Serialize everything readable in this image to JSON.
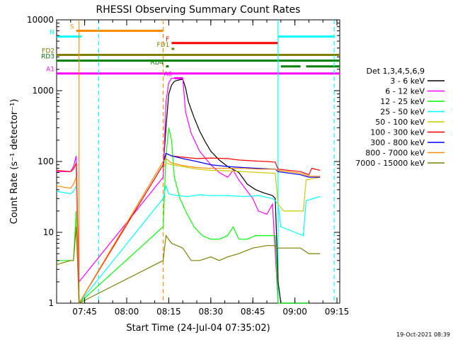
{
  "chart_data": {
    "type": "line",
    "title": "RHESSI Observing Summary Count Rates",
    "xlabel": "Start Time (24-Jul-04 07:35:02)",
    "ylabel": "Count Rate (s⁻¹ detector⁻¹)",
    "yscale": "log",
    "ylim": [
      1,
      10000
    ],
    "xlim": [
      "07:35",
      "09:16"
    ],
    "x_ticks": [
      "07:45",
      "08:00",
      "08:15",
      "08:30",
      "08:45",
      "09:00",
      "09:15"
    ],
    "y_ticks": [
      "1",
      "10",
      "100",
      "1000",
      "10000"
    ],
    "timestamp": "19-Oct-2021 08:39",
    "legend_title": "Det 1,3,4,5,6,9",
    "legend_position": "right",
    "series": [
      {
        "name": "3 - 6 keV",
        "color": "#000000",
        "points": [
          [
            "08:13",
            80
          ],
          [
            "08:14",
            300
          ],
          [
            "08:15",
            900
          ],
          [
            "08:16",
            1200
          ],
          [
            "08:17",
            1350
          ],
          [
            "08:18",
            1400
          ],
          [
            "08:20",
            1450
          ],
          [
            "08:21",
            1100
          ],
          [
            "08:22",
            700
          ],
          [
            "08:24",
            420
          ],
          [
            "08:26",
            270
          ],
          [
            "08:28",
            190
          ],
          [
            "08:30",
            140
          ],
          [
            "08:33",
            105
          ],
          [
            "08:36",
            85
          ],
          [
            "08:40",
            70
          ],
          [
            "08:43",
            48
          ],
          [
            "08:46",
            40
          ],
          [
            "08:49",
            36
          ],
          [
            "08:52",
            33
          ],
          [
            "08:53",
            30
          ],
          [
            "08:54",
            2
          ],
          [
            "08:55",
            1
          ],
          [
            "09:05",
            1
          ]
        ]
      },
      {
        "name": "6 - 12 keV",
        "color": "#ff00ff",
        "points": [
          [
            "07:35",
            72
          ],
          [
            "07:40",
            72
          ],
          [
            "07:41",
            85
          ],
          [
            "07:42",
            120
          ],
          [
            "07:43",
            2
          ],
          [
            "08:13",
            60
          ],
          [
            "08:14",
            700
          ],
          [
            "08:15",
            1300
          ],
          [
            "08:16",
            1500
          ],
          [
            "08:20",
            1500
          ],
          [
            "08:21",
            500
          ],
          [
            "08:23",
            250
          ],
          [
            "08:26",
            140
          ],
          [
            "08:30",
            90
          ],
          [
            "08:33",
            70
          ],
          [
            "08:36",
            60
          ],
          [
            "08:38",
            75
          ],
          [
            "08:40",
            55
          ],
          [
            "08:43",
            38
          ],
          [
            "08:45",
            30
          ],
          [
            "08:47",
            20
          ],
          [
            "08:50",
            18
          ],
          [
            "08:52",
            25
          ],
          [
            "08:54",
            1
          ],
          [
            "09:05",
            1
          ]
        ]
      },
      {
        "name": "12 - 25 keV",
        "color": "#00ff00",
        "points": [
          [
            "07:35",
            4
          ],
          [
            "07:41",
            4
          ],
          [
            "07:42",
            20
          ],
          [
            "07:43",
            1
          ],
          [
            "08:13",
            12
          ],
          [
            "08:14",
            120
          ],
          [
            "08:15",
            300
          ],
          [
            "08:16",
            200
          ],
          [
            "08:17",
            60
          ],
          [
            "08:19",
            30
          ],
          [
            "08:21",
            20
          ],
          [
            "08:24",
            12
          ],
          [
            "08:27",
            9
          ],
          [
            "08:30",
            8
          ],
          [
            "08:33",
            8
          ],
          [
            "08:36",
            9
          ],
          [
            "08:38",
            12
          ],
          [
            "08:40",
            8
          ],
          [
            "08:43",
            8
          ],
          [
            "08:46",
            9
          ],
          [
            "08:50",
            9
          ],
          [
            "08:53",
            9
          ],
          [
            "08:54",
            1
          ],
          [
            "09:05",
            1
          ]
        ]
      },
      {
        "name": "25 - 50 keV",
        "color": "#00ffff",
        "points": [
          [
            "07:35",
            38
          ],
          [
            "07:40",
            35
          ],
          [
            "07:41",
            38
          ],
          [
            "07:42",
            45
          ],
          [
            "07:43",
            1
          ],
          [
            "08:13",
            30
          ],
          [
            "08:14",
            45
          ],
          [
            "08:15",
            35
          ],
          [
            "08:18",
            33
          ],
          [
            "08:22",
            32
          ],
          [
            "08:26",
            34
          ],
          [
            "08:30",
            33
          ],
          [
            "08:36",
            33
          ],
          [
            "08:42",
            32
          ],
          [
            "08:47",
            33
          ],
          [
            "08:52",
            30
          ],
          [
            "08:53",
            28
          ],
          [
            "08:54",
            25
          ],
          [
            "08:55",
            12
          ],
          [
            "09:00",
            10
          ],
          [
            "09:03",
            9
          ],
          [
            "09:04",
            28
          ],
          [
            "09:09",
            32
          ]
        ]
      },
      {
        "name": "50 - 100 keV",
        "color": "#cccc00",
        "points": [
          [
            "08:13",
            80
          ],
          [
            "08:14",
            95
          ],
          [
            "08:16",
            90
          ],
          [
            "08:20",
            85
          ],
          [
            "08:25",
            78
          ],
          [
            "08:30",
            75
          ],
          [
            "08:36",
            74
          ],
          [
            "08:42",
            72
          ],
          [
            "08:47",
            70
          ],
          [
            "08:53",
            68
          ],
          [
            "08:54",
            25
          ],
          [
            "08:56",
            20
          ],
          [
            "09:03",
            20
          ],
          [
            "09:04",
            55
          ],
          [
            "09:09",
            60
          ]
        ]
      },
      {
        "name": "100 - 300 keV",
        "color": "#ff0000",
        "points": [
          [
            "07:35",
            75
          ],
          [
            "07:40",
            72
          ],
          [
            "07:41",
            78
          ],
          [
            "07:42",
            95
          ],
          [
            "07:43",
            1
          ],
          [
            "08:13",
            90
          ],
          [
            "08:14",
            130
          ],
          [
            "08:16",
            120
          ],
          [
            "08:20",
            115
          ],
          [
            "08:25",
            110
          ],
          [
            "08:30",
            112
          ],
          [
            "08:36",
            110
          ],
          [
            "08:40",
            105
          ],
          [
            "08:45",
            102
          ],
          [
            "08:50",
            100
          ],
          [
            "08:53",
            98
          ],
          [
            "08:54",
            78
          ],
          [
            "09:02",
            72
          ],
          [
            "09:05",
            65
          ],
          [
            "09:06",
            80
          ],
          [
            "09:09",
            75
          ]
        ]
      },
      {
        "name": "300 - 800 keV",
        "color": "#0000ff",
        "points": [
          [
            "08:13",
            95
          ],
          [
            "08:14",
            130
          ],
          [
            "08:16",
            120
          ],
          [
            "08:20",
            110
          ],
          [
            "08:25",
            100
          ],
          [
            "08:30",
            90
          ],
          [
            "08:36",
            85
          ],
          [
            "08:42",
            82
          ],
          [
            "08:47",
            80
          ],
          [
            "08:53",
            78
          ],
          [
            "08:54",
            72
          ],
          [
            "09:02",
            65
          ],
          [
            "09:05",
            60
          ],
          [
            "09:09",
            60
          ]
        ]
      },
      {
        "name": "800 - 7000 keV",
        "color": "#ff8c00",
        "points": [
          [
            "07:35",
            45
          ],
          [
            "07:40",
            42
          ],
          [
            "07:41",
            48
          ],
          [
            "07:42",
            60
          ],
          [
            "07:43",
            1
          ],
          [
            "08:13",
            100
          ],
          [
            "08:14",
            110
          ],
          [
            "08:16",
            95
          ],
          [
            "08:20",
            88
          ],
          [
            "08:25",
            82
          ],
          [
            "08:30",
            80
          ],
          [
            "08:36",
            80
          ],
          [
            "08:42",
            80
          ],
          [
            "08:47",
            78
          ],
          [
            "08:53",
            78
          ],
          [
            "08:54",
            75
          ],
          [
            "09:02",
            68
          ],
          [
            "09:05",
            62
          ],
          [
            "09:09",
            62
          ]
        ]
      },
      {
        "name": "7000 - 15000 keV",
        "color": "#808000",
        "points": [
          [
            "07:35",
            3.5
          ],
          [
            "07:40",
            4
          ],
          [
            "07:41",
            4
          ],
          [
            "07:42",
            12
          ],
          [
            "07:43",
            1
          ],
          [
            "08:13",
            4
          ],
          [
            "08:14",
            9
          ],
          [
            "08:16",
            7
          ],
          [
            "08:20",
            6
          ],
          [
            "08:23",
            4
          ],
          [
            "08:26",
            4
          ],
          [
            "08:30",
            4.5
          ],
          [
            "08:33",
            4
          ],
          [
            "08:36",
            4.5
          ],
          [
            "08:40",
            5
          ],
          [
            "08:45",
            6
          ],
          [
            "08:50",
            6.5
          ],
          [
            "08:53",
            6.5
          ],
          [
            "08:54",
            6
          ],
          [
            "09:02",
            6
          ],
          [
            "09:05",
            5
          ],
          [
            "09:09",
            5
          ]
        ]
      }
    ],
    "flag_bars": [
      {
        "label": "S",
        "color": "#ff8c00",
        "y": 7000,
        "start": "07:42",
        "end": "08:13"
      },
      {
        "label": "N",
        "color": "#00ffff",
        "y": 5800,
        "start": "07:35",
        "end": "07:44"
      },
      {
        "label": "",
        "color": "#00ffff",
        "y": 5800,
        "start": "08:54",
        "end": "09:14"
      },
      {
        "label": "F",
        "color": "#ff0000",
        "y": 4700,
        "start": "08:16",
        "end": "08:54"
      },
      {
        "label": "FD1",
        "color": "#808000",
        "y": 3900,
        "start": "08:16",
        "end": "08:17"
      },
      {
        "label": "FD2",
        "color": "#808000",
        "y": 3200,
        "start": "07:35",
        "end": "09:16"
      },
      {
        "label": "RD3",
        "color": "#008000",
        "y": 2650,
        "start": "07:35",
        "end": "09:16"
      },
      {
        "label": "RD4",
        "color": "#008000",
        "y": 2200,
        "start": "08:14",
        "end": "08:15"
      },
      {
        "label": "",
        "color": "#008000",
        "y": 2200,
        "start": "08:55",
        "end": "09:02"
      },
      {
        "label": "",
        "color": "#008000",
        "y": 2200,
        "start": "09:04",
        "end": "09:16"
      },
      {
        "label": "A1",
        "color": "#ff00ff",
        "y": 1750,
        "start": "07:35",
        "end": "09:16"
      },
      {
        "label": "A0",
        "color": "#ff00ff",
        "y": 1500,
        "start": "08:17",
        "end": "08:20"
      }
    ],
    "vertical_lines": [
      {
        "time": "07:43",
        "color": "#ff8c00",
        "style": "solid"
      },
      {
        "time": "07:50",
        "color": "#00ffff",
        "style": "dashed"
      },
      {
        "time": "08:13",
        "color": "#ff8c00",
        "style": "dashed"
      },
      {
        "time": "08:54",
        "color": "#00ffff",
        "style": "solid"
      },
      {
        "time": "09:14",
        "color": "#00ffff",
        "style": "dashed"
      }
    ]
  }
}
